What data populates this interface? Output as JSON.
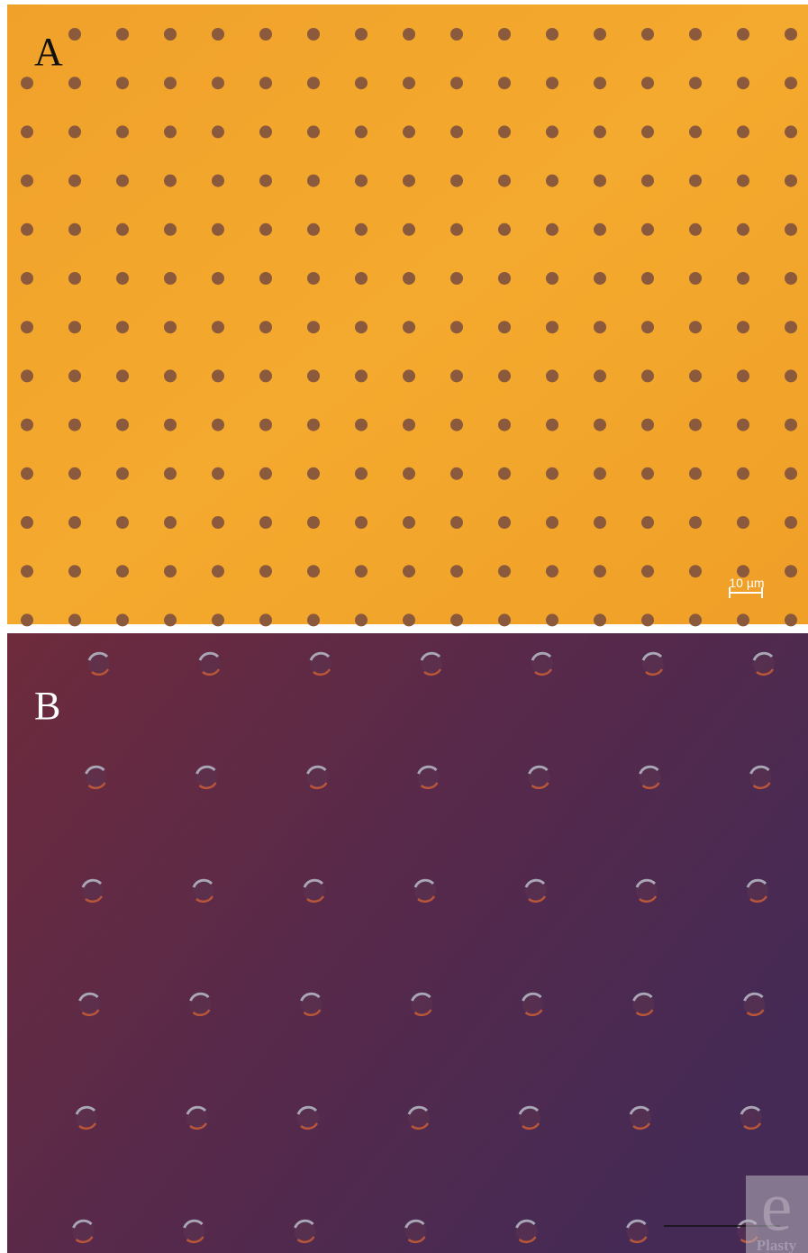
{
  "panels": [
    {
      "label": "A",
      "scale_bar": "10 µm"
    },
    {
      "label": "B"
    }
  ],
  "watermark": {
    "mark": "e",
    "name": "Plasty"
  }
}
